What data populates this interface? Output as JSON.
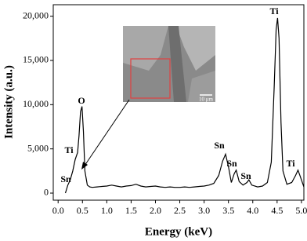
{
  "chart_data": {
    "type": "line",
    "x_label": "Energy (keV)",
    "y_label": "Intensity (a.u.)",
    "x": [
      0.15,
      0.2,
      0.25,
      0.3,
      0.35,
      0.4,
      0.43,
      0.46,
      0.49,
      0.52,
      0.55,
      0.6,
      0.65,
      0.7,
      0.8,
      0.9,
      1.0,
      1.1,
      1.2,
      1.3,
      1.4,
      1.5,
      1.6,
      1.7,
      1.8,
      1.9,
      2.0,
      2.1,
      2.2,
      2.3,
      2.4,
      2.5,
      2.6,
      2.7,
      2.8,
      2.9,
      3.0,
      3.1,
      3.2,
      3.3,
      3.38,
      3.44,
      3.5,
      3.56,
      3.62,
      3.66,
      3.72,
      3.8,
      3.88,
      3.92,
      3.98,
      4.1,
      4.2,
      4.3,
      4.38,
      4.44,
      4.48,
      4.51,
      4.54,
      4.58,
      4.62,
      4.7,
      4.8,
      4.88,
      4.93,
      4.98,
      5.05
    ],
    "series": [
      {
        "color": "#000000",
        "values": [
          0,
          900,
          1500,
          2500,
          3800,
          4600,
          6500,
          9200,
          9800,
          7000,
          2500,
          900,
          700,
          650,
          700,
          750,
          800,
          900,
          800,
          700,
          800,
          850,
          1000,
          800,
          700,
          750,
          800,
          700,
          650,
          700,
          650,
          650,
          700,
          650,
          700,
          750,
          800,
          900,
          1100,
          2000,
          3600,
          4400,
          3000,
          1200,
          2200,
          2600,
          1300,
          900,
          1200,
          1500,
          900,
          700,
          800,
          1200,
          3500,
          12000,
          18500,
          19800,
          17500,
          8000,
          2500,
          1000,
          1200,
          2000,
          2600,
          1800,
          700
        ]
      }
    ],
    "xlim": [
      -0.1,
      5.05
    ],
    "ylim": [
      -800,
      21300
    ],
    "xticks": [
      {
        "value": 0,
        "label": "0.0"
      },
      0.5,
      {
        "value": 1,
        "label": "1.0"
      },
      1.5,
      {
        "value": 2,
        "label": "2.0"
      },
      2.5,
      {
        "value": 3,
        "label": "3.0"
      },
      3.5,
      {
        "value": 4,
        "label": "4.0"
      },
      4.5,
      {
        "value": 5,
        "label": "5.0"
      }
    ],
    "yticks": [
      0,
      {
        "value": 5000,
        "label": "5,000"
      },
      {
        "value": 10000,
        "label": "10,000"
      },
      {
        "value": 15000,
        "label": "15,000"
      },
      {
        "value": 20000,
        "label": "20,000"
      }
    ],
    "annotations": [
      "Sn",
      "Ti",
      "O",
      "Sn",
      "Sn",
      "Sn",
      "Ti",
      "Ti"
    ],
    "inset_scale": "10 μm"
  }
}
